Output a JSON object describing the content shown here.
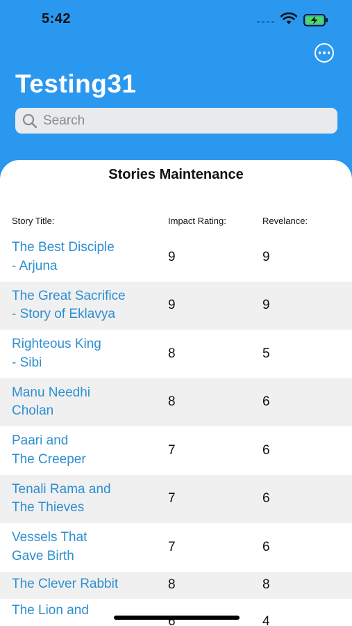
{
  "status_bar": {
    "time": "5:42"
  },
  "header": {
    "title": "Testing31",
    "search_placeholder": "Search"
  },
  "card": {
    "title": "Stories Maintenance",
    "columns": {
      "title": "Story Title:",
      "impact": "Impact Rating:",
      "relevance": "Revelance:"
    },
    "rows": [
      {
        "title": "The Best Disciple\n- Arjuna",
        "impact": "9",
        "relevance": "9"
      },
      {
        "title": "The Great Sacrifice\n- Story of Eklavya",
        "impact": "9",
        "relevance": "9"
      },
      {
        "title": "Righteous King\n- Sibi",
        "impact": "8",
        "relevance": "5"
      },
      {
        "title": "Manu Needhi\nCholan",
        "impact": "8",
        "relevance": "6"
      },
      {
        "title": "Paari and\nThe Creeper",
        "impact": "7",
        "relevance": "6"
      },
      {
        "title": "Tenali Rama and\nThe Thieves",
        "impact": "7",
        "relevance": "6"
      },
      {
        "title": "Vessels That\nGave Birth",
        "impact": "7",
        "relevance": "6"
      },
      {
        "title": "The Clever Rabbit",
        "impact": "8",
        "relevance": "8"
      },
      {
        "title": "The Lion and",
        "impact": "6",
        "relevance": "4"
      }
    ]
  },
  "colors": {
    "header_background": "#2b98f0",
    "link": "#2d8fd0",
    "row_shade": "#f0f0f1"
  }
}
